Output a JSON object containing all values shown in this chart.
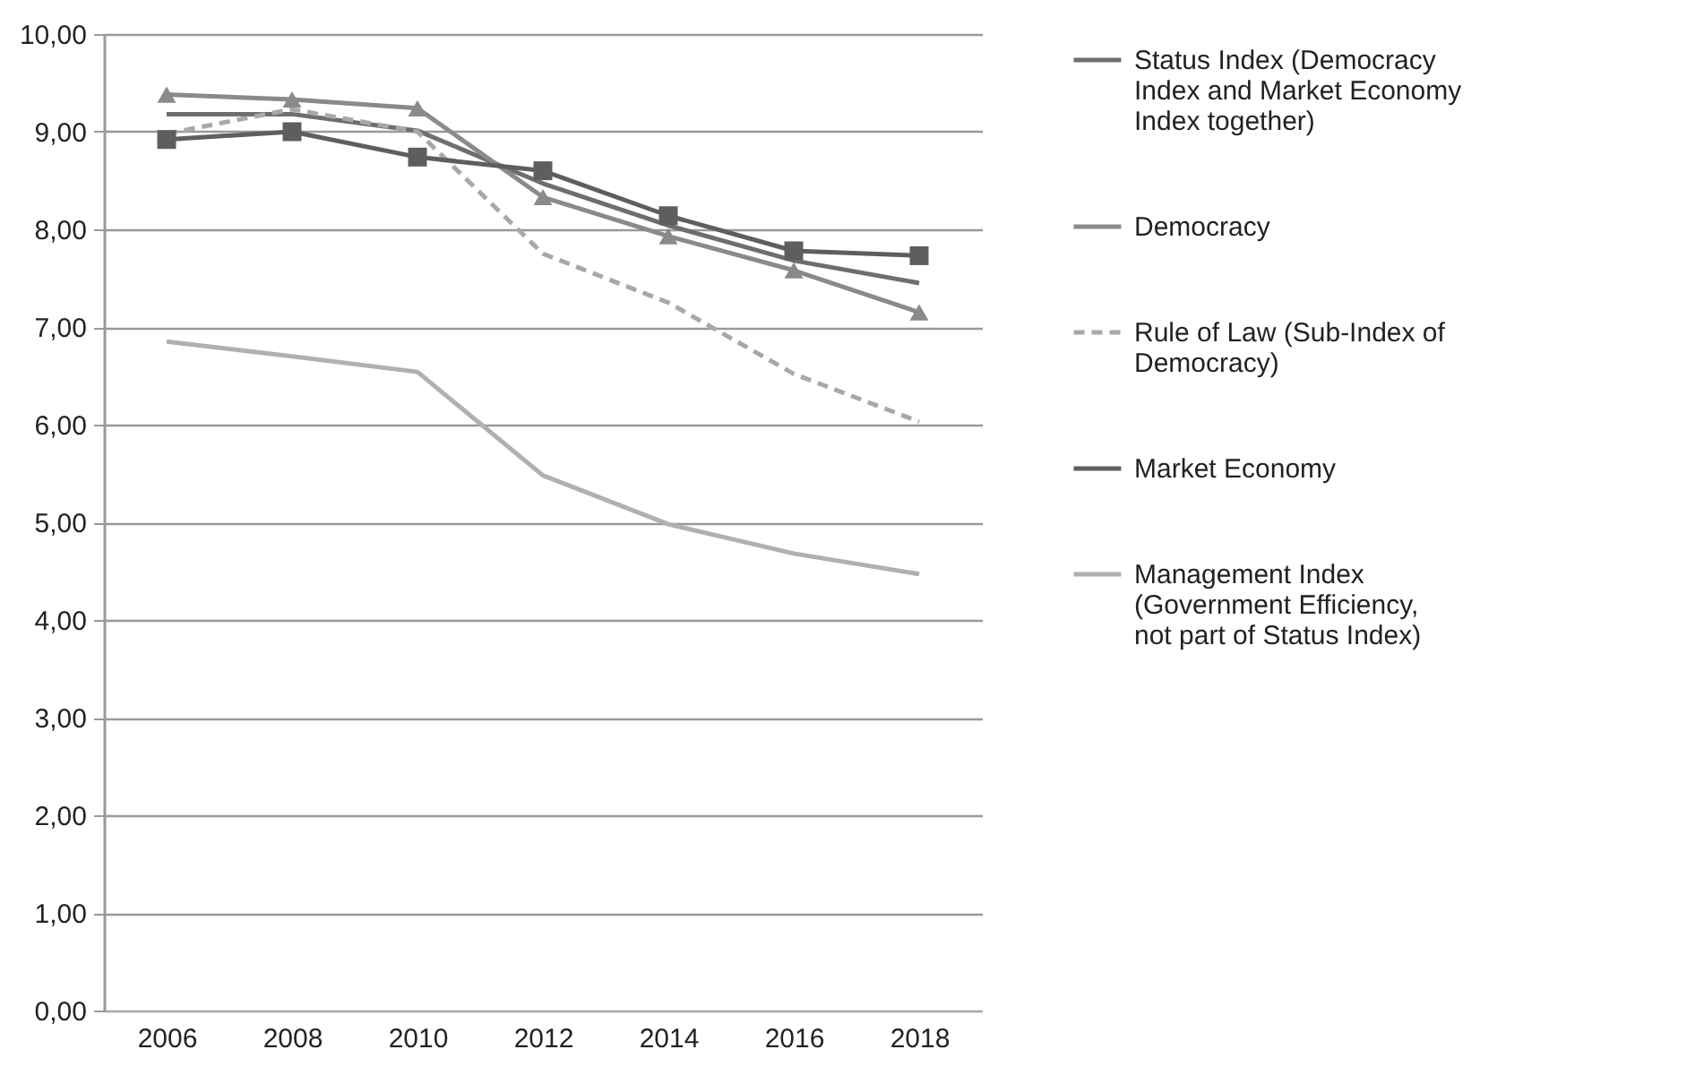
{
  "chart_data": {
    "type": "line",
    "categories": [
      "2006",
      "2008",
      "2010",
      "2012",
      "2014",
      "2016",
      "2018"
    ],
    "series": [
      {
        "name": "Status Index (Democracy Index and Market Economy Index together)",
        "color": "#6e6e6e",
        "values": [
          9.18,
          9.18,
          9.01,
          8.47,
          8.04,
          7.68,
          7.45
        ],
        "marker": "none",
        "line_style": "solid"
      },
      {
        "name": "Democracy",
        "color": "#8a8a8a",
        "values": [
          9.38,
          9.33,
          9.24,
          8.33,
          7.93,
          7.58,
          7.15
        ],
        "marker": "triangle",
        "line_style": "solid"
      },
      {
        "name": "Rule of Law (Sub-Index of Democracy)",
        "color": "#a8a8a8",
        "values": [
          8.98,
          9.23,
          9.0,
          7.75,
          7.25,
          6.52,
          6.03
        ],
        "marker": "none",
        "line_style": "dashed"
      },
      {
        "name": "Market Economy",
        "color": "#5e5e5e",
        "values": [
          8.92,
          9.0,
          8.74,
          8.6,
          8.14,
          7.78,
          7.73
        ],
        "marker": "square",
        "line_style": "solid"
      },
      {
        "name": "Management Index (Government Efficiency, not part of Status Index)",
        "color": "#b0b0b0",
        "values": [
          6.85,
          6.7,
          6.54,
          5.48,
          4.98,
          4.68,
          4.47
        ],
        "marker": "none",
        "line_style": "solid"
      }
    ],
    "ylim": [
      0,
      10
    ],
    "yticks": [
      {
        "value": 0,
        "label": "0,00"
      },
      {
        "value": 1,
        "label": "1,00"
      },
      {
        "value": 2,
        "label": "2,00"
      },
      {
        "value": 3,
        "label": "3,00"
      },
      {
        "value": 4,
        "label": "4,00"
      },
      {
        "value": 5,
        "label": "5,00"
      },
      {
        "value": 6,
        "label": "6,00"
      },
      {
        "value": 7,
        "label": "7,00"
      },
      {
        "value": 8,
        "label": "8,00"
      },
      {
        "value": 9,
        "label": "9,00"
      },
      {
        "value": 10,
        "label": "10,00"
      }
    ],
    "grid": "y",
    "legend": "right"
  }
}
